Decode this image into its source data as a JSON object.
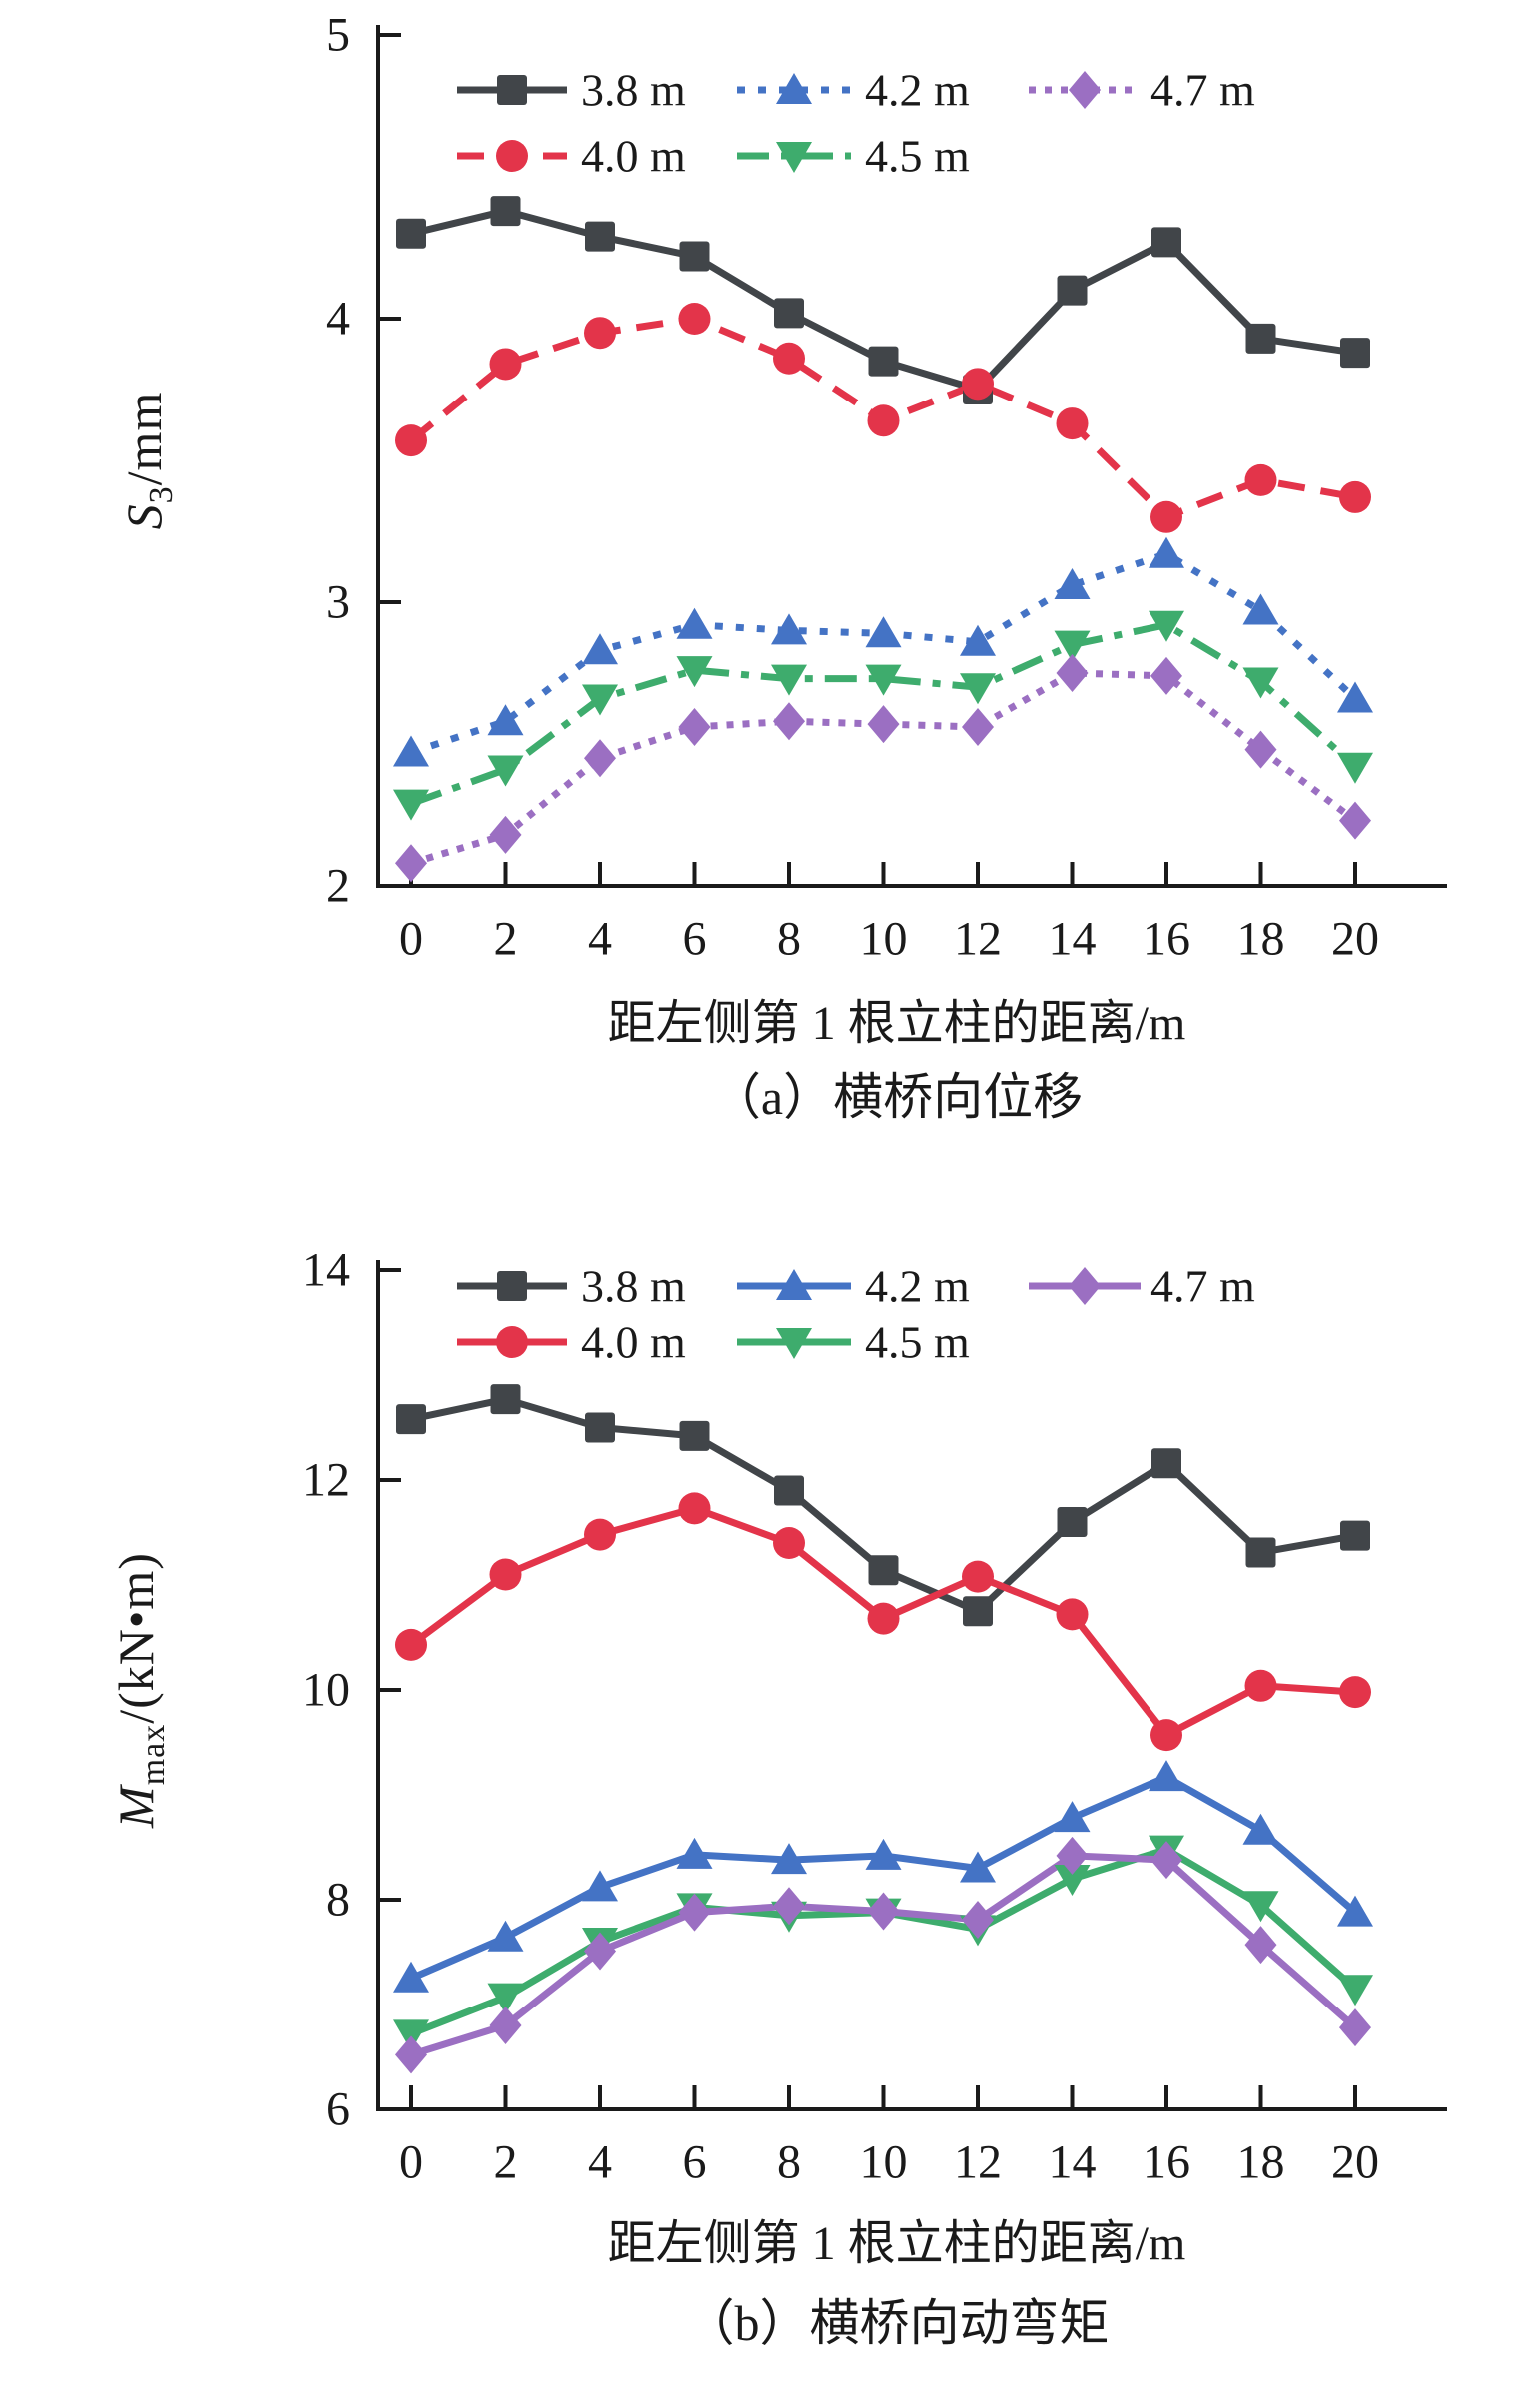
{
  "page": {
    "background": "#ffffff",
    "text_color": "#1a1a1a",
    "axis_color": "#1a1a1a"
  },
  "chart_data": [
    {
      "id": "a",
      "type": "line",
      "title": "（a）横桥向位移",
      "xlabel": "距左侧第 1 根立柱的距离/m",
      "ylabel_base": "S",
      "ylabel_sub": "3",
      "ylabel_unit": "/mm",
      "x": [
        0,
        2,
        4,
        6,
        8,
        10,
        12,
        14,
        16,
        18,
        20
      ],
      "xlim": [
        0,
        20
      ],
      "ylim": [
        2,
        5
      ],
      "yticks": [
        2,
        3,
        4,
        5
      ],
      "xticks": [
        0,
        2,
        4,
        6,
        8,
        10,
        12,
        14,
        16,
        18,
        20
      ],
      "grid": false,
      "legend_position": "top-inside",
      "series": [
        {
          "name": "3.8 m",
          "color": "#414549",
          "marker": "square",
          "line": "solid",
          "values": [
            4.3,
            4.38,
            4.29,
            4.22,
            4.02,
            3.85,
            3.75,
            4.1,
            4.27,
            3.93,
            3.88
          ]
        },
        {
          "name": "4.0 m",
          "color": "#E3344A",
          "marker": "circle",
          "line": "dashed",
          "values": [
            3.57,
            3.84,
            3.95,
            4.0,
            3.86,
            3.64,
            3.77,
            3.63,
            3.3,
            3.43,
            3.37
          ]
        },
        {
          "name": "4.2 m",
          "color": "#4473C5",
          "marker": "triangle-up",
          "line": "dotted",
          "values": [
            2.47,
            2.58,
            2.83,
            2.92,
            2.9,
            2.89,
            2.86,
            3.06,
            3.17,
            2.97,
            2.66
          ]
        },
        {
          "name": "4.5 m",
          "color": "#3EAC6D",
          "marker": "triangle-down",
          "line": "dashdot",
          "values": [
            2.29,
            2.41,
            2.66,
            2.76,
            2.73,
            2.73,
            2.7,
            2.85,
            2.92,
            2.72,
            2.42
          ]
        },
        {
          "name": "4.7 m",
          "color": "#9B6FC2",
          "marker": "diamond",
          "line": "dotted-fine",
          "values": [
            2.08,
            2.18,
            2.45,
            2.56,
            2.58,
            2.57,
            2.56,
            2.75,
            2.74,
            2.48,
            2.23
          ]
        }
      ]
    },
    {
      "id": "b",
      "type": "line",
      "title": "（b）横桥向动弯矩",
      "xlabel": "距左侧第 1 根立柱的距离/m",
      "ylabel_base": "M",
      "ylabel_sub": "max",
      "ylabel_unit": "/(kN•m)",
      "x": [
        0,
        2,
        4,
        6,
        8,
        10,
        12,
        14,
        16,
        18,
        20
      ],
      "xlim": [
        0,
        20
      ],
      "ylim": [
        6,
        14
      ],
      "yticks": [
        6,
        8,
        10,
        12,
        14
      ],
      "xticks": [
        0,
        2,
        4,
        6,
        8,
        10,
        12,
        14,
        16,
        18,
        20
      ],
      "grid": false,
      "legend_position": "top-inside",
      "series": [
        {
          "name": "3.8 m",
          "color": "#414549",
          "marker": "square",
          "line": "solid",
          "values": [
            12.58,
            12.77,
            12.5,
            12.42,
            11.9,
            11.14,
            10.75,
            11.6,
            12.16,
            11.31,
            11.47
          ]
        },
        {
          "name": "4.0 m",
          "color": "#E3344A",
          "marker": "circle",
          "line": "solid",
          "values": [
            10.43,
            11.1,
            11.48,
            11.73,
            11.4,
            10.68,
            11.08,
            10.72,
            9.57,
            10.04,
            9.98
          ]
        },
        {
          "name": "4.2 m",
          "color": "#4473C5",
          "marker": "triangle-up",
          "line": "solid",
          "values": [
            7.25,
            7.64,
            8.12,
            8.43,
            8.38,
            8.42,
            8.3,
            8.78,
            9.17,
            8.66,
            7.88
          ]
        },
        {
          "name": "4.5 m",
          "color": "#3EAC6D",
          "marker": "triangle-down",
          "line": "solid",
          "values": [
            6.72,
            7.07,
            7.6,
            7.93,
            7.85,
            7.88,
            7.72,
            8.2,
            8.48,
            7.95,
            7.15
          ]
        },
        {
          "name": "4.7 m",
          "color": "#9B6FC2",
          "marker": "diamond",
          "line": "solid",
          "values": [
            6.52,
            6.8,
            7.51,
            7.88,
            7.94,
            7.89,
            7.81,
            8.42,
            8.38,
            7.57,
            6.78
          ]
        }
      ]
    }
  ]
}
